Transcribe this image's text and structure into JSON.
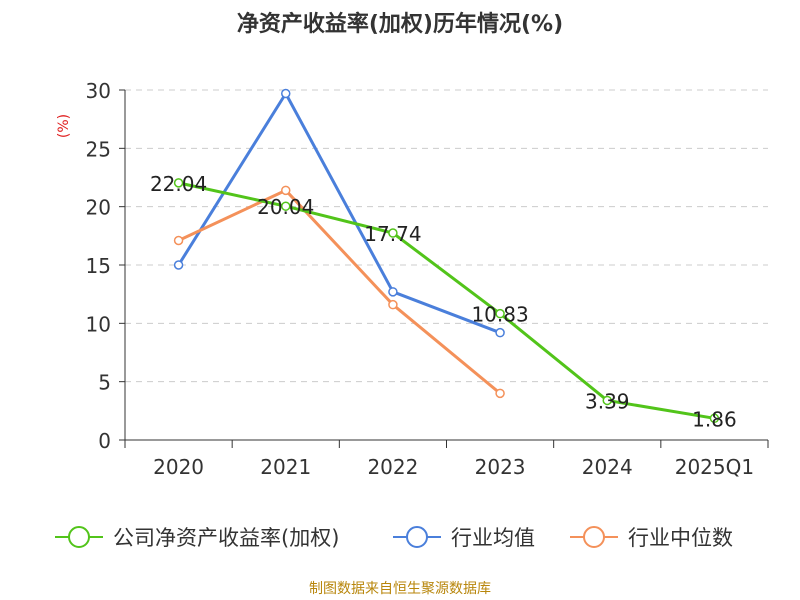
{
  "chart_data": {
    "type": "line",
    "title": "净资产收益率(加权)历年情况(%)",
    "ylabel": "(%)",
    "categories": [
      "2020",
      "2021",
      "2022",
      "2023",
      "2024",
      "2025Q1"
    ],
    "ylim": [
      0,
      30
    ],
    "yticks": [
      0,
      5,
      10,
      15,
      20,
      25,
      30
    ],
    "grid": true,
    "legend_position": "bottom",
    "series": [
      {
        "name": "公司净资产收益率(加权)",
        "color": "#52c41a",
        "values": [
          22.04,
          20.04,
          17.74,
          10.83,
          3.39,
          1.86
        ],
        "labels": [
          "22.04",
          "20.04",
          "17.74",
          "10.83",
          "3.39",
          "1.86"
        ]
      },
      {
        "name": "行业均值",
        "color": "#4a7fdb",
        "values": [
          15.0,
          29.7,
          12.7,
          9.2,
          null,
          null
        ]
      },
      {
        "name": "行业中位数",
        "color": "#f4915a",
        "values": [
          17.1,
          21.4,
          11.6,
          4.0,
          null,
          null
        ]
      }
    ]
  },
  "source": "制图数据来自恒生聚源数据库"
}
